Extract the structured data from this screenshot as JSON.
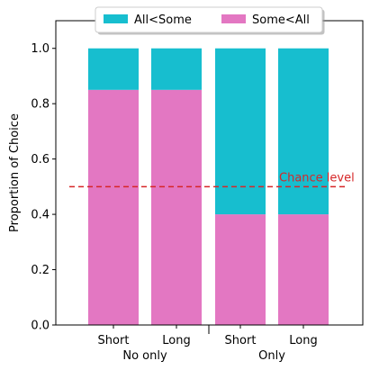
{
  "chart_data": {
    "type": "bar",
    "stacked": true,
    "categories": [
      "Short",
      "Long",
      "Short",
      "Long"
    ],
    "groups": [
      {
        "label": "No only",
        "categories": [
          0,
          1
        ]
      },
      {
        "label": "Only",
        "categories": [
          2,
          3
        ]
      }
    ],
    "series": [
      {
        "name": "Some<All",
        "values": [
          0.85,
          0.85,
          0.4,
          0.4
        ],
        "color": "#e377c2"
      },
      {
        "name": "All<Some",
        "values": [
          0.15,
          0.15,
          0.6,
          0.6
        ],
        "color": "#17becf"
      }
    ],
    "ylabel": "Proportion of Choice",
    "ylim": [
      0,
      1.1
    ],
    "yticks": [
      "0.0",
      "0.2",
      "0.4",
      "0.6",
      "0.8",
      "1.0"
    ],
    "reference_line": {
      "value": 0.5,
      "label": "Chance level",
      "color": "#d62728",
      "style": "dashed"
    },
    "legend": {
      "placement": "top-center",
      "order": [
        "All<Some",
        "Some<All"
      ]
    },
    "grid": false
  }
}
